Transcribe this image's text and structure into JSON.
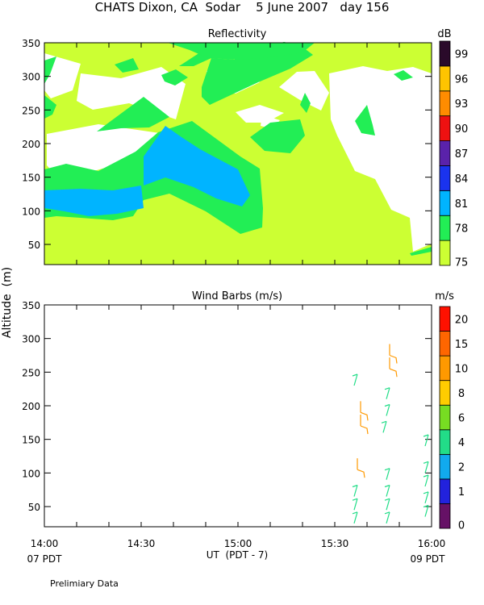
{
  "header": {
    "title": "CHATS Dixon, CA  Sodar    5 June 2007   day 156",
    "footnote": "Prelimiary Data",
    "y_axis_label": "Altitude  (m)"
  },
  "chart_data": [
    {
      "type": "heatmap",
      "title": "Reflectivity",
      "ylim": [
        20,
        350
      ],
      "y_ticks": [
        50,
        100,
        150,
        200,
        250,
        300,
        350
      ],
      "x_range": [
        "14:00",
        "16:00"
      ],
      "colorbar": {
        "unit": "dB",
        "labels": [
          "75",
          "78",
          "81",
          "84",
          "87",
          "90",
          "93",
          "96",
          "99"
        ],
        "colors": [
          "#ccff33",
          "#22ee55",
          "#00b4ff",
          "#1a33ee",
          "#5a22aa",
          "#ee1111",
          "#ff8c00",
          "#ffc400",
          "#2a0a2a"
        ]
      },
      "levels_present": [
        {
          "level": "75",
          "color": "#ccff33"
        },
        {
          "level": "78",
          "color": "#22ee55"
        },
        {
          "level": "81",
          "color": "#00b4ff"
        }
      ],
      "background": "#ffffff"
    },
    {
      "type": "scatter",
      "title": "Wind Barbs (m/s)",
      "ylim": [
        20,
        350
      ],
      "y_ticks": [
        50,
        100,
        150,
        200,
        250,
        300,
        350
      ],
      "x_range": [
        "14:00",
        "16:00"
      ],
      "x_ticks": [
        "14:00",
        "14:30",
        "15:00",
        "15:30",
        "16:00"
      ],
      "xlabel": "UT  (PDT - 7)",
      "x_sub_labels": [
        "07 PDT",
        "09 PDT"
      ],
      "colorbar": {
        "unit": "m/s",
        "labels": [
          "0",
          "1",
          "2",
          "4",
          "6",
          "8",
          "10",
          "15",
          "20"
        ],
        "colors": [
          "#661166",
          "#2222dd",
          "#11aaee",
          "#22dd88",
          "#77dd22",
          "#ffcc00",
          "#ff9900",
          "#ff6600",
          "#ff1100"
        ]
      },
      "barbs": [
        {
          "time": "15:36",
          "alt": 25,
          "speed_class": "4"
        },
        {
          "time": "15:36",
          "alt": 45,
          "speed_class": "4"
        },
        {
          "time": "15:36",
          "alt": 65,
          "speed_class": "4"
        },
        {
          "time": "15:37",
          "alt": 105,
          "speed_class": "10"
        },
        {
          "time": "15:38",
          "alt": 170,
          "speed_class": "10"
        },
        {
          "time": "15:38",
          "alt": 190,
          "speed_class": "10"
        },
        {
          "time": "15:36",
          "alt": 230,
          "speed_class": "4"
        },
        {
          "time": "15:46",
          "alt": 25,
          "speed_class": "4"
        },
        {
          "time": "15:46",
          "alt": 45,
          "speed_class": "4"
        },
        {
          "time": "15:46",
          "alt": 65,
          "speed_class": "4"
        },
        {
          "time": "15:46",
          "alt": 90,
          "speed_class": "4"
        },
        {
          "time": "15:45",
          "alt": 160,
          "speed_class": "4"
        },
        {
          "time": "15:46",
          "alt": 185,
          "speed_class": "4"
        },
        {
          "time": "15:46",
          "alt": 210,
          "speed_class": "4"
        },
        {
          "time": "15:47",
          "alt": 255,
          "speed_class": "10"
        },
        {
          "time": "15:47",
          "alt": 275,
          "speed_class": "10"
        },
        {
          "time": "15:58",
          "alt": 35,
          "speed_class": "4"
        },
        {
          "time": "15:58",
          "alt": 55,
          "speed_class": "4"
        },
        {
          "time": "15:58",
          "alt": 80,
          "speed_class": "4"
        },
        {
          "time": "15:58",
          "alt": 100,
          "speed_class": "4"
        },
        {
          "time": "15:58",
          "alt": 140,
          "speed_class": "4"
        }
      ]
    }
  ]
}
